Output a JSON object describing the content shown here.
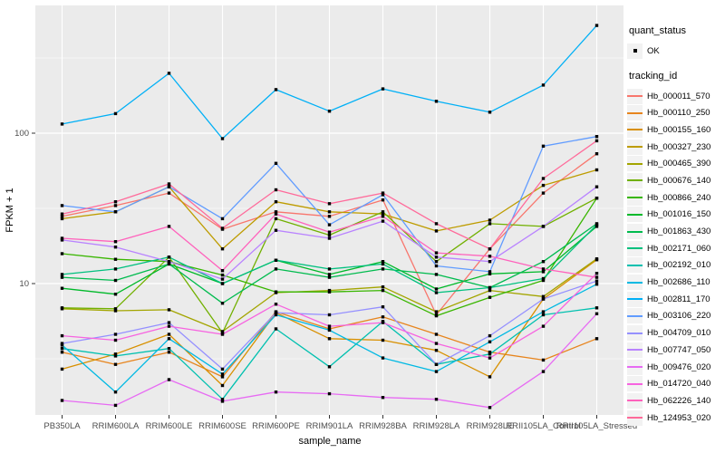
{
  "figure": {
    "background": "#FFFFFF",
    "panel_background": "#EBEBEB",
    "grid_color": "#FFFFFF",
    "tick_color": "#333333",
    "axis_text_color": "#4D4D4D"
  },
  "legend": {
    "quant_status": {
      "title": "quant_status",
      "items": [
        {
          "label": "OK",
          "marker": "black-point"
        }
      ]
    },
    "tracking_id": {
      "title": "tracking_id"
    }
  },
  "chart_data": {
    "type": "line",
    "title": "",
    "xlabel": "sample_name",
    "ylabel": "FPKM + 1",
    "y_scale": "log10",
    "y_ticks": [
      10,
      100
    ],
    "y_minor_ticks": [
      3.162,
      31.62,
      316.2
    ],
    "ylim": [
      1.34,
      707
    ],
    "grid": true,
    "legend_position": "right",
    "point_marker": "small-black-square",
    "categories": [
      "PB350LA",
      "RRIM600LA",
      "RRIM600LE",
      "RRIM600SE",
      "RRIM600PE",
      "RRIM901LA",
      "RRIM928BA",
      "RRIM928LA",
      "RRIM928LE",
      "RRII105LA_Control",
      "RRII105LA_Stressed"
    ],
    "series": [
      {
        "name": "Hb_000011_570",
        "color": "#F8766D",
        "values": [
          28,
          33,
          40,
          23,
          30,
          28,
          36,
          6.2,
          17,
          40,
          73
        ]
      },
      {
        "name": "Hb_000110_250",
        "color": "#E7851E",
        "values": [
          3.5,
          2.9,
          3.5,
          2.4,
          6.5,
          5,
          6,
          4.6,
          3.5,
          3.1,
          4.3
        ]
      },
      {
        "name": "Hb_000155_160",
        "color": "#D89000",
        "values": [
          2.7,
          3.4,
          4.6,
          2.1,
          6.4,
          4.3,
          4.2,
          3.6,
          2.4,
          7.9,
          14.4
        ]
      },
      {
        "name": "Hb_000327_230",
        "color": "#BE9C00",
        "values": [
          27,
          30,
          44,
          17,
          35,
          30,
          29,
          22.4,
          26.4,
          45,
          57
        ]
      },
      {
        "name": "Hb_000465_390",
        "color": "#A3A500",
        "values": [
          6.8,
          6.6,
          6.7,
          4.8,
          8.7,
          9,
          9.5,
          6.5,
          9,
          8.2,
          14.6
        ]
      },
      {
        "name": "Hb_000676_140",
        "color": "#71B000",
        "values": [
          6.9,
          6.8,
          15,
          4.7,
          27,
          21,
          30,
          14,
          25,
          24,
          37
        ]
      },
      {
        "name": "Hb_000866_240",
        "color": "#39B600",
        "values": [
          15.8,
          14.5,
          14,
          11.4,
          8.8,
          8.8,
          9,
          6.1,
          8.1,
          10.5,
          37
        ]
      },
      {
        "name": "Hb_001016_150",
        "color": "#00B92A",
        "values": [
          9.3,
          8.5,
          13.5,
          10,
          14.3,
          11.5,
          14,
          9.2,
          11.6,
          12,
          24
        ]
      },
      {
        "name": "Hb_001863_430",
        "color": "#00BB4E",
        "values": [
          11,
          10.5,
          13.5,
          7.4,
          12.5,
          11,
          12.5,
          11.5,
          9.4,
          14,
          25
        ]
      },
      {
        "name": "Hb_002171_060",
        "color": "#00C07E",
        "values": [
          11.5,
          12.5,
          15,
          10,
          14.3,
          12.5,
          13.5,
          8.7,
          9.4,
          10.8,
          24.6
        ]
      },
      {
        "name": "Hb_002192_010",
        "color": "#00C0AF",
        "values": [
          3.7,
          3.3,
          3.7,
          1.7,
          5,
          2.8,
          5.6,
          2.9,
          3.4,
          6.2,
          6.9
        ]
      },
      {
        "name": "Hb_002686_110",
        "color": "#00B9E3",
        "values": [
          3.9,
          1.9,
          4.3,
          2.5,
          6.2,
          4.9,
          3.2,
          2.6,
          4.1,
          6.5,
          9.9
        ]
      },
      {
        "name": "Hb_002811_170",
        "color": "#00B0F6",
        "values": [
          115,
          135,
          250,
          92,
          195,
          140,
          197,
          163,
          138,
          209,
          520
        ]
      },
      {
        "name": "Hb_003106_220",
        "color": "#619CFF",
        "values": [
          33,
          30,
          44,
          27,
          63,
          24.6,
          39,
          13.1,
          12,
          82,
          95
        ]
      },
      {
        "name": "Hb_004709_010",
        "color": "#9590FF",
        "values": [
          4,
          4.6,
          5.5,
          2.7,
          6.4,
          6.2,
          7,
          2.9,
          4.5,
          7.9,
          10.4
        ]
      },
      {
        "name": "Hb_007747_050",
        "color": "#B983FF",
        "values": [
          19.5,
          17.5,
          14,
          10.7,
          22.6,
          20,
          26,
          15,
          14,
          24,
          44
        ]
      },
      {
        "name": "Hb_009476_020",
        "color": "#E76BF3",
        "values": [
          1.67,
          1.55,
          2.3,
          1.65,
          1.9,
          1.85,
          1.75,
          1.7,
          1.5,
          2.6,
          6.3
        ]
      },
      {
        "name": "Hb_014720_040",
        "color": "#F763E0",
        "values": [
          4.5,
          4.2,
          5.2,
          4.6,
          7.3,
          5.2,
          5.5,
          4,
          3.2,
          5.2,
          11.7
        ]
      },
      {
        "name": "Hb_062226_140",
        "color": "#FF62BC",
        "values": [
          20,
          19,
          24,
          12.2,
          29,
          22,
          28,
          16,
          15.2,
          12.5,
          11
        ]
      },
      {
        "name": "Hb_124953_020",
        "color": "#FF6A9A",
        "values": [
          29,
          35,
          46,
          23.3,
          42,
          34,
          40,
          25,
          17,
          50,
          89
        ]
      }
    ]
  }
}
